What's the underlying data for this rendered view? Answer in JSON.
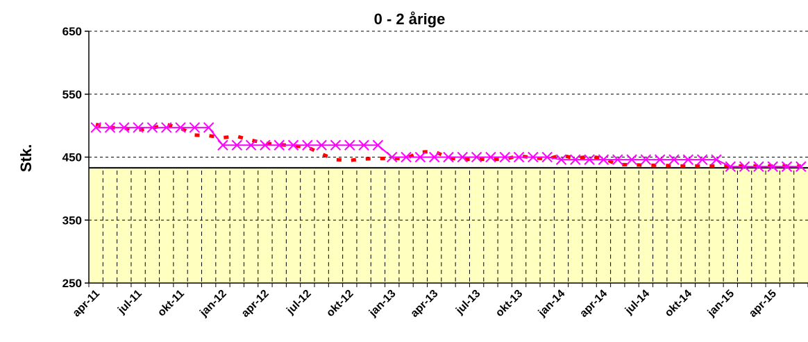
{
  "chart_data": {
    "type": "line",
    "title": "0 - 2 årige",
    "xlabel": "",
    "ylabel": "Stk.",
    "ylim": [
      250,
      650
    ],
    "yticks": [
      250,
      350,
      450,
      550,
      650
    ],
    "x": [
      "apr-11",
      "maj-11",
      "jun-11",
      "jul-11",
      "aug-11",
      "sep-11",
      "okt-11",
      "nov-11",
      "dec-11",
      "jan-12",
      "feb-12",
      "mar-12",
      "apr-12",
      "maj-12",
      "jun-12",
      "jul-12",
      "aug-12",
      "sep-12",
      "okt-12",
      "nov-12",
      "dec-12",
      "jan-13",
      "feb-13",
      "mar-13",
      "apr-13",
      "maj-13",
      "jun-13",
      "jul-13",
      "aug-13",
      "sep-13",
      "okt-13",
      "nov-13",
      "dec-13",
      "jan-14",
      "feb-14",
      "mar-14",
      "apr-14",
      "maj-14",
      "jun-14",
      "jul-14",
      "aug-14",
      "sep-14",
      "okt-14",
      "nov-14",
      "dec-14",
      "jan-15",
      "feb-15",
      "mar-15",
      "apr-15",
      "maj-15",
      "jun-15"
    ],
    "xtick_labels": [
      "apr-11",
      "jul-11",
      "okt-11",
      "jan-12",
      "apr-12",
      "jul-12",
      "okt-12",
      "jan-13",
      "apr-13",
      "jul-13",
      "okt-13",
      "jan-14",
      "apr-14",
      "jul-14",
      "okt-14",
      "jan-15",
      "apr-15"
    ],
    "series": [
      {
        "style": "dashed",
        "color": "#ff0000",
        "values": [
          502,
          497,
          496,
          493,
          496,
          502,
          496,
          485,
          484,
          481,
          483,
          477,
          472,
          470,
          468,
          466,
          455,
          446,
          445,
          447,
          448,
          448,
          448,
          458,
          459,
          449,
          446,
          447,
          446,
          447,
          452,
          449,
          447,
          453,
          448,
          451,
          448,
          438,
          438,
          437,
          437,
          436,
          436,
          436,
          436,
          436,
          436,
          436,
          436,
          436,
          436
        ]
      },
      {
        "style": "solid-x-markers",
        "color": "#ff00ff",
        "values": [
          497,
          497,
          497,
          497,
          497,
          497,
          497,
          497,
          497,
          469,
          469,
          469,
          469,
          469,
          469,
          469,
          469,
          469,
          469,
          469,
          469,
          450,
          450,
          450,
          450,
          450,
          450,
          450,
          450,
          450,
          450,
          450,
          450,
          446,
          446,
          446,
          446,
          446,
          446,
          446,
          446,
          446,
          446,
          446,
          446,
          435,
          435,
          435,
          435,
          435,
          435
        ]
      }
    ],
    "reference_level": 433,
    "shaded_area_color": "#ffffc0",
    "grid": "horizontal dashed above shaded area, vertical dashed inside shaded area",
    "legend": "none"
  }
}
